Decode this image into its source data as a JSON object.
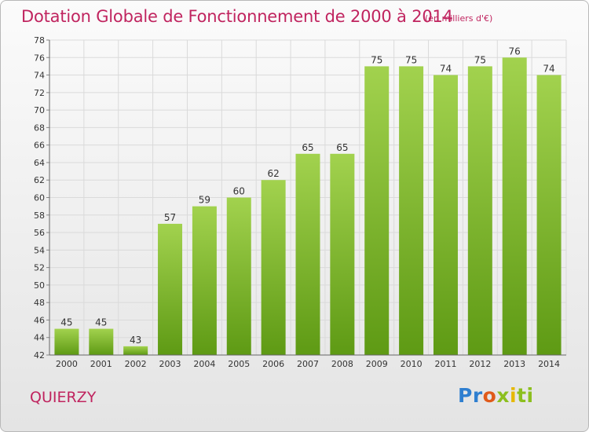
{
  "header": {
    "title": "Dotation Globale de Fonctionnement de 2000 à 2014",
    "subtitle": "(en milliers d'€)"
  },
  "commune": "QUIERZY",
  "brand": {
    "parts": [
      "Pr",
      "o",
      "x",
      "i",
      "ti"
    ]
  },
  "colors": {
    "title": "#c0245f",
    "bar_top": "#a2d24e",
    "bar_bottom": "#5e9a14",
    "grid": "#dadada"
  },
  "chart_data": {
    "type": "bar",
    "title": "Dotation Globale de Fonctionnement de 2000 à 2014",
    "subtitle": "(en milliers d'€)",
    "categories": [
      "2000",
      "2001",
      "2002",
      "2003",
      "2004",
      "2005",
      "2006",
      "2007",
      "2008",
      "2009",
      "2010",
      "2011",
      "2012",
      "2013",
      "2014"
    ],
    "values": [
      45,
      45,
      43,
      57,
      59,
      60,
      62,
      65,
      65,
      75,
      75,
      74,
      75,
      76,
      74
    ],
    "data_labels": [
      "45",
      "45",
      "43",
      "57",
      "59",
      "60",
      "62",
      "65",
      "65",
      "75",
      "75",
      "74",
      "75",
      "76",
      "74"
    ],
    "ylim": [
      42,
      78
    ],
    "yticks": [
      "42",
      "44",
      "46",
      "48",
      "50",
      "52",
      "54",
      "56",
      "58",
      "60",
      "62",
      "64",
      "66",
      "68",
      "70",
      "72",
      "74",
      "76",
      "78"
    ],
    "grid": true,
    "legend": "none"
  }
}
